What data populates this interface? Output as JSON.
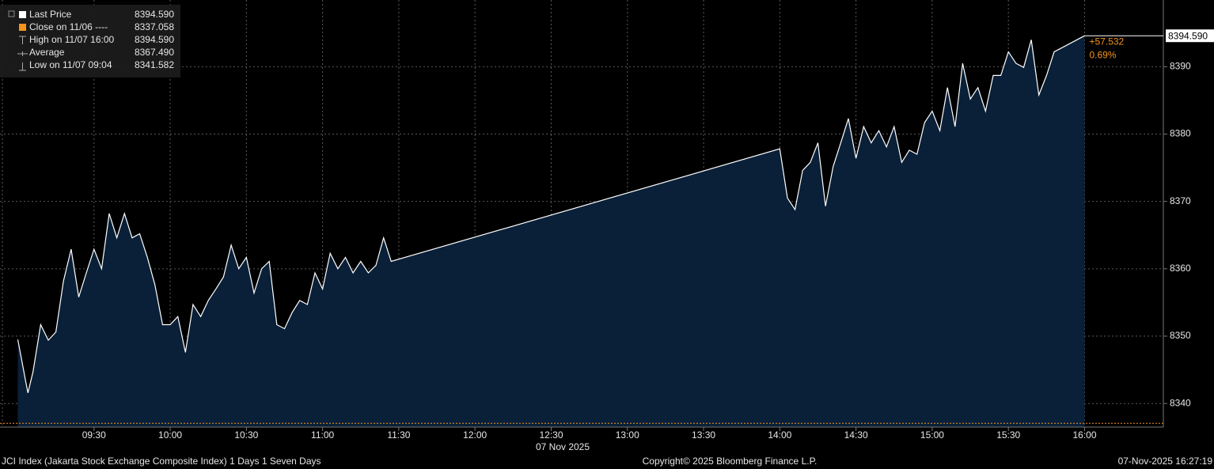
{
  "chart_data": {
    "type": "area",
    "x": [
      "09:00",
      "09:03",
      "09:04",
      "09:06",
      "09:09",
      "09:12",
      "09:15",
      "09:18",
      "09:21",
      "09:24",
      "09:27",
      "09:30",
      "09:33",
      "09:36",
      "09:39",
      "09:42",
      "09:45",
      "09:48",
      "09:51",
      "09:54",
      "09:57",
      "10:00",
      "10:03",
      "10:06",
      "10:09",
      "10:12",
      "10:15",
      "10:18",
      "10:21",
      "10:24",
      "10:27",
      "10:30",
      "10:33",
      "10:36",
      "10:39",
      "10:42",
      "10:45",
      "10:48",
      "10:51",
      "10:54",
      "10:57",
      "11:00",
      "11:03",
      "11:06",
      "11:09",
      "11:12",
      "11:15",
      "11:18",
      "11:21",
      "11:24",
      "11:27",
      "14:00",
      "14:03",
      "14:06",
      "14:09",
      "14:12",
      "14:15",
      "14:18",
      "14:21",
      "14:24",
      "14:27",
      "14:30",
      "14:33",
      "14:36",
      "14:39",
      "14:42",
      "14:45",
      "14:48",
      "14:51",
      "14:54",
      "14:57",
      "15:00",
      "15:03",
      "15:06",
      "15:09",
      "15:12",
      "15:15",
      "15:18",
      "15:21",
      "15:24",
      "15:27",
      "15:30",
      "15:33",
      "15:36",
      "15:39",
      "15:42",
      "15:45",
      "15:48",
      "16:00"
    ],
    "series": [
      {
        "color": "#ffffff",
        "fill": "#0a2038",
        "values": [
          8349.5,
          8343.5,
          8341.582,
          8344.7,
          8351.7,
          8349.4,
          8350.6,
          8358.2,
          8362.9,
          8355.8,
          8359.4,
          8362.9,
          8360,
          8368.2,
          8364.6,
          8368.2,
          8364.6,
          8365.2,
          8361.7,
          8357.6,
          8351.7,
          8351.7,
          8352.9,
          8347.6,
          8354.7,
          8352.9,
          8355.3,
          8357,
          8358.8,
          8363.5,
          8360,
          8361.7,
          8356.4,
          8360,
          8361.1,
          8351.7,
          8351.1,
          8353.5,
          8355.3,
          8354.7,
          8359.4,
          8357,
          8362.3,
          8360,
          8361.7,
          8359.4,
          8361.1,
          8359.4,
          8360.5,
          8364.6,
          8361.1,
          8377.8,
          8370.5,
          8368.8,
          8374.6,
          8375.8,
          8378.7,
          8369.3,
          8375.2,
          8378.7,
          8382.3,
          8376.4,
          8381.1,
          8378.7,
          8380.5,
          8378.1,
          8381.1,
          8375.8,
          8377.6,
          8377,
          8381.7,
          8383.4,
          8380.5,
          8386.9,
          8381.1,
          8390.5,
          8385.2,
          8386.9,
          8383.4,
          8388.7,
          8388.7,
          8392.2,
          8390.5,
          8389.9,
          8394,
          8385.8,
          8388.7,
          8392.2,
          8394.59
        ]
      }
    ],
    "stats": [
      {
        "name": "Last Price",
        "value": 8394.59,
        "label": "8394.590",
        "color": "#ffffff"
      },
      {
        "name": "Close on 11/06 ----",
        "value": 8337.058,
        "label": "8337.058",
        "color": "#f7941d"
      },
      {
        "name": "High on 11/07 16:00",
        "value": 8394.59,
        "label": "8394.590"
      },
      {
        "name": "Average",
        "value": 8367.49,
        "label": "8367.490"
      },
      {
        "name": "Low on 11/07 09:04",
        "value": 8341.582,
        "label": "8341.582"
      }
    ],
    "change": {
      "value": 57.532,
      "label": "+57.532"
    },
    "change_pct": {
      "value": 0.69,
      "label": "0.69%"
    },
    "xlim": [
      "08:53",
      "16:31"
    ],
    "xticks": [
      "09:30",
      "10:00",
      "10:30",
      "11:00",
      "11:30",
      "12:00",
      "12:30",
      "13:00",
      "13:30",
      "14:00",
      "14:30",
      "15:00",
      "15:30",
      "16:00"
    ],
    "x_label": "07 Nov 2025",
    "ylim": [
      8336.5,
      8399.9
    ],
    "yticks": [
      8340,
      8350,
      8360,
      8370,
      8380,
      8390
    ],
    "grid": true
  },
  "footer": {
    "left": "JCI Index (Jakarta Stock Exchange Composite Index) 1 Days 1 Seven Days",
    "center": "Copyright© 2025 Bloomberg Finance L.P.",
    "right": "07-Nov-2025 16:27:19"
  }
}
